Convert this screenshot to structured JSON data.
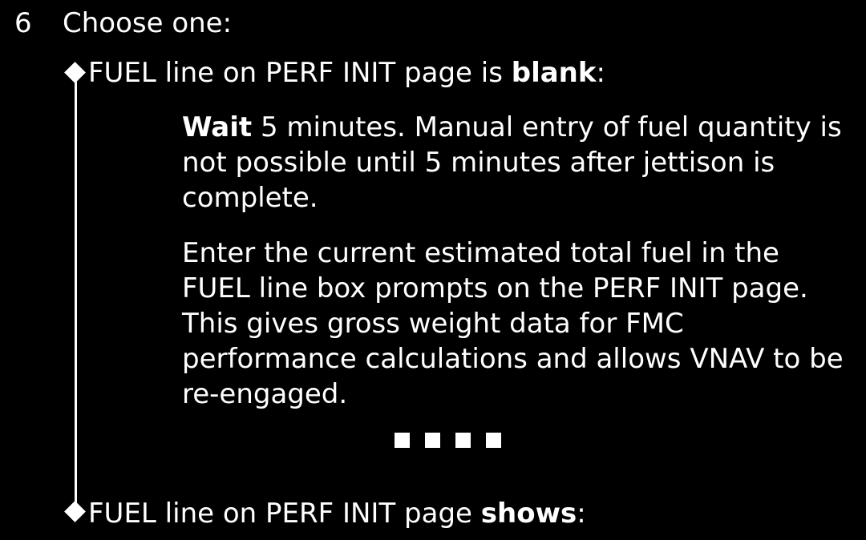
{
  "step": {
    "number": "6",
    "title": "Choose one:"
  },
  "options": [
    {
      "prefix": "FUEL line on PERF INIT page is ",
      "bold": "blank",
      "suffix": ":"
    },
    {
      "prefix": "FUEL line on PERF INIT page ",
      "bold": "shows",
      "suffix": ":"
    }
  ],
  "paragraphs": [
    {
      "bold": "Wait",
      "text": " 5 minutes. Manual entry of fuel quantity is not possible until 5 minutes after jettison is complete."
    },
    {
      "text": "Enter the current estimated total fuel in the FUEL line box prompts on the PERF INIT page. This gives gross weight data for FMC performance calculations and allows VNAV to be re-engaged."
    }
  ],
  "end_marker": {
    "count": 4,
    "symbol": "end-of-procedure-squares"
  },
  "colors": {
    "background": "#000000",
    "text": "#ffffff"
  }
}
